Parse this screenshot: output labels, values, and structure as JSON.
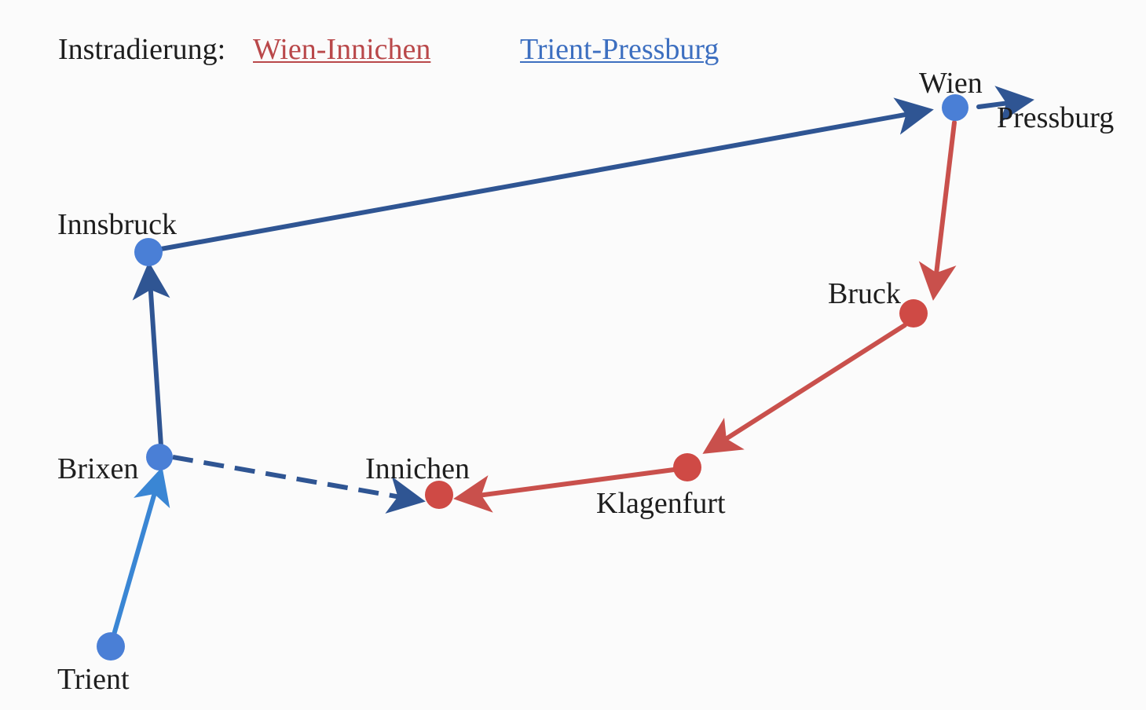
{
  "legend": {
    "label": "Instradierung:",
    "route_red": "Wien-Innichen",
    "route_blue": "Trient-Pressburg"
  },
  "places": {
    "wien": "Wien",
    "pressburg": "Pressburg",
    "innsbruck": "Innsbruck",
    "bruck": "Bruck",
    "brixen": "Brixen",
    "innichen": "Innichen",
    "klagenfurt": "Klagenfurt",
    "trient": "Trient"
  },
  "colors": {
    "red_route": "#c9504c",
    "blue_route": "#2f5593",
    "light_blue_route": "#3a86d4",
    "blue_node": "#4a7fd6",
    "red_node": "#cf4a45"
  }
}
